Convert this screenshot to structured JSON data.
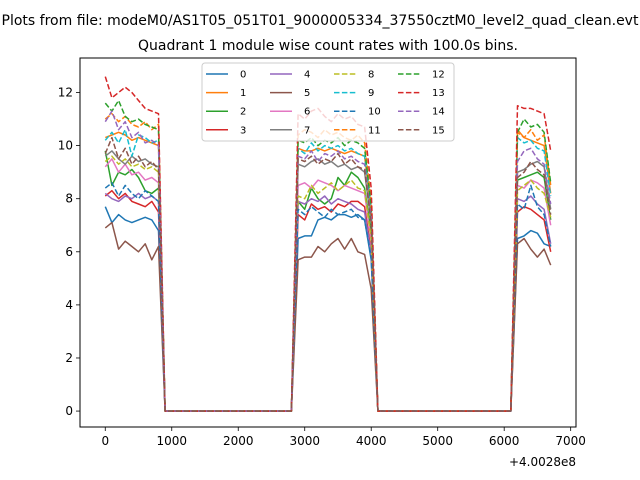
{
  "chart_data": {
    "type": "line",
    "suptitle": "Plots from file: modeM0/AS1T05_051T01_9000005334_37550cztM0_level2_quad_clean.evt",
    "title": "Quadrant 1 module wise count rates with 100.0s bins.",
    "xlabel": "",
    "ylabel": "",
    "x_offset_label": "+4.0028e8",
    "xlim": [
      -380,
      7080
    ],
    "ylim": [
      -0.6,
      13.3
    ],
    "xticks": [
      0,
      1000,
      2000,
      3000,
      4000,
      5000,
      6000,
      7000
    ],
    "yticks": [
      0,
      2,
      4,
      6,
      8,
      10,
      12
    ],
    "grid": false,
    "legend": {
      "placement": "top-center",
      "columns": 4
    },
    "x": [
      0,
      100,
      200,
      300,
      400,
      500,
      600,
      700,
      800,
      900,
      1000,
      1100,
      1200,
      1300,
      1400,
      1500,
      1600,
      1700,
      1800,
      1900,
      2000,
      2100,
      2200,
      2300,
      2400,
      2500,
      2600,
      2700,
      2800,
      2900,
      3000,
      3100,
      3200,
      3300,
      3400,
      3500,
      3600,
      3700,
      3800,
      3900,
      4000,
      4100,
      4200,
      4300,
      4400,
      4500,
      4600,
      4700,
      4800,
      4900,
      5000,
      5100,
      5200,
      5300,
      5400,
      5500,
      5600,
      5700,
      5800,
      5900,
      6000,
      6100,
      6200,
      6300,
      6400,
      6500,
      6600,
      6700
    ],
    "series": [
      {
        "name": "0",
        "color": "#1f77b4",
        "dash": "solid",
        "values": [
          7.7,
          7.1,
          7.4,
          7.2,
          7.1,
          7.2,
          7.3,
          7.2,
          6.8,
          0,
          0,
          0,
          0,
          0,
          0,
          0,
          0,
          0,
          0,
          0,
          0,
          0,
          0,
          0,
          0,
          0,
          0,
          0,
          0,
          6.5,
          6.6,
          6.6,
          7.2,
          7.3,
          7.2,
          7.4,
          7.4,
          7.3,
          7.4,
          7.2,
          5.7,
          0,
          0,
          0,
          0,
          0,
          0,
          0,
          0,
          0,
          0,
          0,
          0,
          0,
          0,
          0,
          0,
          0,
          0,
          0,
          0,
          0,
          6.5,
          6.6,
          6.8,
          6.7,
          6.3,
          6.2
        ]
      },
      {
        "name": "1",
        "color": "#ff7f0e",
        "dash": "solid",
        "values": [
          10.3,
          10.4,
          10.5,
          10.4,
          10.2,
          10.3,
          10.2,
          10.1,
          10.0,
          0,
          0,
          0,
          0,
          0,
          0,
          0,
          0,
          0,
          0,
          0,
          0,
          0,
          0,
          0,
          0,
          0,
          0,
          0,
          0,
          9.9,
          9.8,
          9.8,
          9.9,
          9.8,
          9.9,
          9.8,
          9.7,
          9.8,
          9.7,
          9.6,
          7.5,
          0,
          0,
          0,
          0,
          0,
          0,
          0,
          0,
          0,
          0,
          0,
          0,
          0,
          0,
          0,
          0,
          0,
          0,
          0,
          0,
          0,
          10.6,
          10.3,
          10.2,
          10.1,
          10.0,
          8.2
        ]
      },
      {
        "name": "2",
        "color": "#2ca02c",
        "dash": "solid",
        "values": [
          9.8,
          8.5,
          9.0,
          8.9,
          9.1,
          8.8,
          8.3,
          8.2,
          8.4,
          0,
          0,
          0,
          0,
          0,
          0,
          0,
          0,
          0,
          0,
          0,
          0,
          0,
          0,
          0,
          0,
          0,
          0,
          0,
          0,
          7.9,
          7.6,
          8.4,
          8.0,
          7.8,
          8.0,
          8.8,
          8.5,
          9.0,
          8.8,
          8.4,
          6.7,
          0,
          0,
          0,
          0,
          0,
          0,
          0,
          0,
          0,
          0,
          0,
          0,
          0,
          0,
          0,
          0,
          0,
          0,
          0,
          0,
          0,
          8.7,
          8.8,
          8.9,
          9.0,
          8.8,
          7.2
        ]
      },
      {
        "name": "3",
        "color": "#d62728",
        "dash": "solid",
        "values": [
          8.1,
          8.3,
          8.0,
          8.2,
          7.9,
          7.8,
          7.7,
          7.9,
          7.5,
          0,
          0,
          0,
          0,
          0,
          0,
          0,
          0,
          0,
          0,
          0,
          0,
          0,
          0,
          0,
          0,
          0,
          0,
          0,
          0,
          7.4,
          7.2,
          7.8,
          7.6,
          7.7,
          7.5,
          7.8,
          7.7,
          7.9,
          7.9,
          7.7,
          6.0,
          0,
          0,
          0,
          0,
          0,
          0,
          0,
          0,
          0,
          0,
          0,
          0,
          0,
          0,
          0,
          0,
          0,
          0,
          0,
          0,
          0,
          7.5,
          7.7,
          7.6,
          7.4,
          7.2,
          6.0
        ]
      },
      {
        "name": "4",
        "color": "#9467bd",
        "dash": "solid",
        "values": [
          8.2,
          8.0,
          7.9,
          8.1,
          8.0,
          8.2,
          8.0,
          8.1,
          7.9,
          0,
          0,
          0,
          0,
          0,
          0,
          0,
          0,
          0,
          0,
          0,
          0,
          0,
          0,
          0,
          0,
          0,
          0,
          0,
          0,
          7.9,
          7.8,
          8.0,
          7.9,
          8.1,
          7.8,
          8.0,
          7.9,
          7.8,
          7.6,
          7.5,
          5.9,
          0,
          0,
          0,
          0,
          0,
          0,
          0,
          0,
          0,
          0,
          0,
          0,
          0,
          0,
          0,
          0,
          0,
          0,
          0,
          0,
          0,
          8.0,
          7.9,
          8.1,
          7.8,
          7.6,
          6.3
        ]
      },
      {
        "name": "5",
        "color": "#8c564b",
        "dash": "solid",
        "values": [
          6.9,
          7.1,
          6.1,
          6.4,
          6.2,
          6.0,
          6.3,
          5.7,
          6.2,
          0,
          0,
          0,
          0,
          0,
          0,
          0,
          0,
          0,
          0,
          0,
          0,
          0,
          0,
          0,
          0,
          0,
          0,
          0,
          0,
          5.7,
          5.8,
          5.8,
          6.2,
          6.0,
          6.3,
          6.5,
          6.1,
          6.5,
          6.0,
          5.9,
          4.6,
          0,
          0,
          0,
          0,
          0,
          0,
          0,
          0,
          0,
          0,
          0,
          0,
          0,
          0,
          0,
          0,
          0,
          0,
          0,
          0,
          0,
          6.3,
          6.5,
          6.1,
          5.8,
          6.1,
          5.5
        ]
      },
      {
        "name": "6",
        "color": "#e377c2",
        "dash": "solid",
        "values": [
          9.2,
          9.5,
          9.0,
          9.3,
          8.9,
          9.0,
          8.7,
          8.8,
          8.6,
          0,
          0,
          0,
          0,
          0,
          0,
          0,
          0,
          0,
          0,
          0,
          0,
          0,
          0,
          0,
          0,
          0,
          0,
          0,
          0,
          8.5,
          8.6,
          8.4,
          8.7,
          8.6,
          8.5,
          8.3,
          8.5,
          8.4,
          8.3,
          8.2,
          6.4,
          0,
          0,
          0,
          0,
          0,
          0,
          0,
          0,
          0,
          0,
          0,
          0,
          0,
          0,
          0,
          0,
          0,
          0,
          0,
          0,
          0,
          8.5,
          8.4,
          8.7,
          8.6,
          8.4,
          7.0
        ]
      },
      {
        "name": "7",
        "color": "#7f7f7f",
        "dash": "solid",
        "values": [
          9.6,
          9.8,
          9.5,
          9.3,
          9.6,
          9.4,
          9.5,
          9.3,
          9.2,
          0,
          0,
          0,
          0,
          0,
          0,
          0,
          0,
          0,
          0,
          0,
          0,
          0,
          0,
          0,
          0,
          0,
          0,
          0,
          0,
          9.3,
          9.2,
          9.4,
          9.5,
          9.3,
          9.4,
          9.2,
          9.3,
          9.1,
          9.2,
          9.0,
          7.1,
          0,
          0,
          0,
          0,
          0,
          0,
          0,
          0,
          0,
          0,
          0,
          0,
          0,
          0,
          0,
          0,
          0,
          0,
          0,
          0,
          0,
          9.0,
          9.1,
          9.3,
          9.4,
          9.2,
          7.6
        ]
      },
      {
        "name": "8",
        "color": "#bcbd22",
        "dash": "dashed",
        "values": [
          9.4,
          9.6,
          9.3,
          9.5,
          9.2,
          9.3,
          9.1,
          9.2,
          9.0,
          0,
          0,
          0,
          0,
          0,
          0,
          0,
          0,
          0,
          0,
          0,
          0,
          0,
          0,
          0,
          0,
          0,
          0,
          0,
          0,
          8.1,
          8.0,
          8.5,
          8.2,
          8.4,
          8.6,
          8.3,
          8.5,
          8.7,
          8.4,
          8.3,
          6.5,
          0,
          0,
          0,
          0,
          0,
          0,
          0,
          0,
          0,
          0,
          0,
          0,
          0,
          0,
          0,
          0,
          0,
          0,
          0,
          0,
          0,
          8.3,
          8.5,
          8.7,
          8.4,
          8.2,
          7.3
        ]
      },
      {
        "name": "9",
        "color": "#17becf",
        "dash": "dashed",
        "values": [
          10.2,
          10.5,
          10.1,
          10.6,
          9.6,
          10.4,
          10.3,
          10.1,
          10.2,
          0,
          0,
          0,
          0,
          0,
          0,
          0,
          0,
          0,
          0,
          0,
          0,
          0,
          0,
          0,
          0,
          0,
          0,
          0,
          0,
          9.9,
          9.7,
          10.1,
          9.8,
          10.0,
          9.9,
          10.0,
          9.8,
          9.9,
          9.7,
          9.6,
          7.6,
          0,
          0,
          0,
          0,
          0,
          0,
          0,
          0,
          0,
          0,
          0,
          0,
          0,
          0,
          0,
          0,
          0,
          0,
          0,
          0,
          0,
          10.3,
          10.1,
          10.2,
          9.9,
          9.8,
          8.1
        ]
      },
      {
        "name": "10",
        "color": "#1f77b4",
        "dash": "dashed",
        "values": [
          8.4,
          8.6,
          8.1,
          8.5,
          8.2,
          8.0,
          8.3,
          8.1,
          7.9,
          0,
          0,
          0,
          0,
          0,
          0,
          0,
          0,
          0,
          0,
          0,
          0,
          0,
          0,
          0,
          0,
          0,
          0,
          0,
          0,
          7.6,
          7.4,
          7.7,
          7.5,
          7.3,
          7.6,
          7.4,
          7.5,
          7.6,
          7.3,
          7.2,
          5.8,
          0,
          0,
          0,
          0,
          0,
          0,
          0,
          0,
          0,
          0,
          0,
          0,
          0,
          0,
          0,
          0,
          0,
          0,
          0,
          0,
          0,
          7.8,
          7.6,
          8.5,
          7.7,
          7.4,
          6.2
        ]
      },
      {
        "name": "11",
        "color": "#ff7f0e",
        "dash": "dashed",
        "values": [
          11.0,
          11.2,
          10.9,
          11.1,
          10.8,
          10.7,
          10.9,
          10.6,
          10.8,
          0,
          0,
          0,
          0,
          0,
          0,
          0,
          0,
          0,
          0,
          0,
          0,
          0,
          0,
          0,
          0,
          0,
          0,
          0,
          0,
          10.4,
          10.6,
          10.5,
          10.3,
          10.6,
          10.4,
          10.5,
          10.3,
          10.2,
          10.4,
          10.1,
          7.9,
          0,
          0,
          0,
          0,
          0,
          0,
          0,
          0,
          0,
          0,
          0,
          0,
          0,
          0,
          0,
          0,
          0,
          0,
          0,
          0,
          0,
          10.5,
          10.3,
          10.6,
          10.2,
          10.4,
          8.5
        ]
      },
      {
        "name": "12",
        "color": "#2ca02c",
        "dash": "dashed",
        "values": [
          11.6,
          11.3,
          11.7,
          11.1,
          10.9,
          11.0,
          10.8,
          10.7,
          10.6,
          0,
          0,
          0,
          0,
          0,
          0,
          0,
          0,
          0,
          0,
          0,
          0,
          0,
          0,
          0,
          0,
          0,
          0,
          0,
          0,
          10.2,
          10.1,
          10.3,
          10.0,
          10.2,
          10.1,
          10.3,
          10.0,
          10.2,
          10.1,
          9.9,
          7.7,
          0,
          0,
          0,
          0,
          0,
          0,
          0,
          0,
          0,
          0,
          0,
          0,
          0,
          0,
          0,
          0,
          0,
          0,
          0,
          0,
          0,
          10.5,
          11.0,
          10.7,
          10.8,
          10.5,
          8.6
        ]
      },
      {
        "name": "13",
        "color": "#d62728",
        "dash": "dashed",
        "values": [
          12.6,
          11.8,
          12.0,
          12.2,
          12.0,
          11.7,
          11.4,
          11.3,
          11.2,
          0,
          0,
          0,
          0,
          0,
          0,
          0,
          0,
          0,
          0,
          0,
          0,
          0,
          0,
          0,
          0,
          0,
          0,
          0,
          0,
          11.2,
          11.0,
          11.3,
          11.4,
          11.1,
          10.9,
          11.2,
          11.0,
          11.1,
          10.8,
          10.7,
          8.4,
          0,
          0,
          0,
          0,
          0,
          0,
          0,
          0,
          0,
          0,
          0,
          0,
          0,
          0,
          0,
          0,
          0,
          0,
          0,
          0,
          0,
          11.5,
          11.4,
          11.4,
          11.3,
          11.2,
          9.8
        ]
      },
      {
        "name": "14",
        "color": "#9467bd",
        "dash": "dashed",
        "values": [
          10.9,
          11.3,
          10.6,
          10.9,
          10.3,
          10.5,
          10.1,
          10.2,
          10.0,
          0,
          0,
          0,
          0,
          0,
          0,
          0,
          0,
          0,
          0,
          0,
          0,
          0,
          0,
          0,
          0,
          0,
          0,
          0,
          0,
          9.6,
          9.5,
          9.8,
          9.4,
          9.7,
          9.6,
          9.8,
          9.5,
          9.6,
          9.4,
          9.3,
          7.3,
          0,
          0,
          0,
          0,
          0,
          0,
          0,
          0,
          0,
          0,
          0,
          0,
          0,
          0,
          0,
          0,
          0,
          0,
          0,
          0,
          0,
          9.4,
          9.8,
          9.9,
          9.5,
          9.3,
          7.8
        ]
      },
      {
        "name": "15",
        "color": "#8c564b",
        "dash": "dashed",
        "values": [
          9.7,
          10.3,
          9.5,
          9.9,
          9.3,
          9.6,
          9.2,
          9.4,
          9.1,
          0,
          0,
          0,
          0,
          0,
          0,
          0,
          0,
          0,
          0,
          0,
          0,
          0,
          0,
          0,
          0,
          0,
          0,
          0,
          0,
          9.5,
          9.4,
          9.6,
          9.3,
          9.5,
          9.4,
          9.7,
          9.3,
          9.5,
          9.2,
          9.1,
          7.1,
          0,
          0,
          0,
          0,
          0,
          0,
          0,
          0,
          0,
          0,
          0,
          0,
          0,
          0,
          0,
          0,
          0,
          0,
          0,
          0,
          0,
          8.8,
          9.0,
          9.4,
          9.1,
          8.9,
          7.4
        ]
      }
    ]
  }
}
